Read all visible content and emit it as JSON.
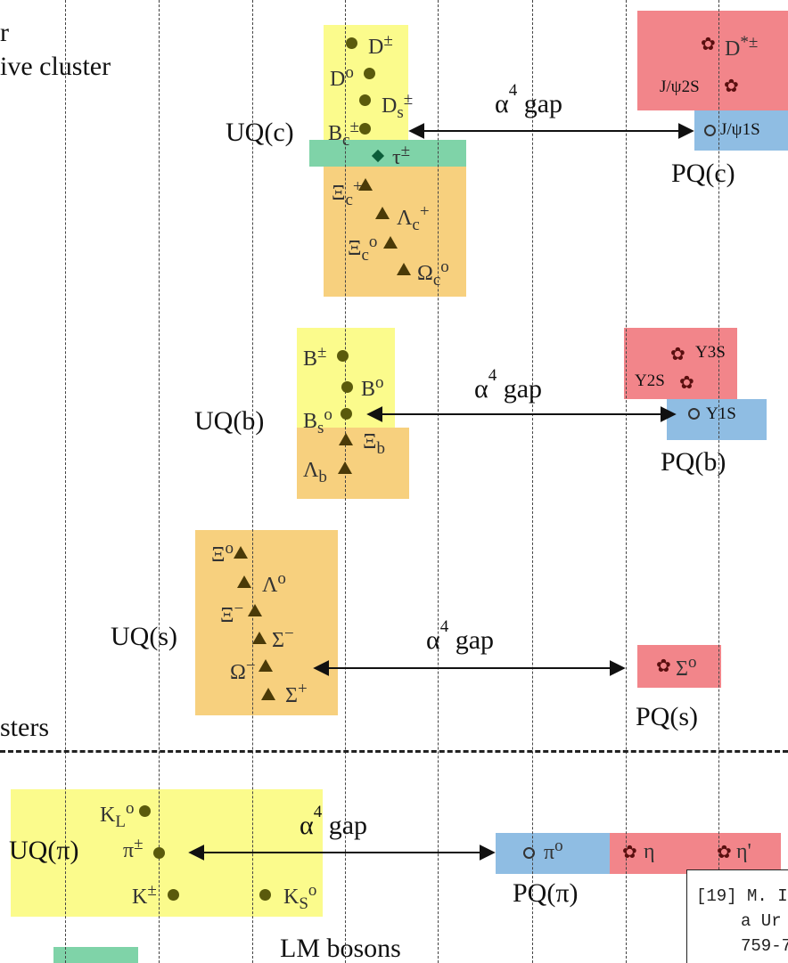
{
  "top_left_lines": [
    "r",
    "ive cluster"
  ],
  "left_clusters_label": "sters",
  "bottom_label": "LM bosons",
  "gap": {
    "alpha": "α",
    "exponent": "4",
    "word": "gap"
  },
  "uq": {
    "c": "UQ(c)",
    "b": "UQ(b)",
    "s": "UQ(s)",
    "pi": "UQ(π)"
  },
  "pq": {
    "c": "PQ(c)",
    "b": "PQ(b)",
    "s": "PQ(s)",
    "pi": "PQ(π)"
  },
  "particles": {
    "D_pm": {
      "base": "D",
      "sup": "±"
    },
    "D0": {
      "base": "D",
      "sup": "o"
    },
    "Ds": {
      "base": "D",
      "sub": "s",
      "sup": "±"
    },
    "Bc": {
      "base": "B",
      "sub": "c",
      "sup": "±"
    },
    "tau": {
      "base": "τ",
      "sup": "±"
    },
    "Xi_c_plus": {
      "base": "Ξ",
      "sub": "c",
      "sup": "+"
    },
    "Lambda_c": {
      "base": "Λ",
      "sub": "c",
      "sup": "+"
    },
    "Xi_c0": {
      "base": "Ξ",
      "sub": "c",
      "sup": "o"
    },
    "Omega_c": {
      "base": "Ω",
      "sub": "c",
      "sup": "o"
    },
    "Dstar": {
      "base": "D",
      "sup": "*±"
    },
    "Jpsi2S": {
      "text": "J/ψ2S"
    },
    "Jpsi1S": {
      "text": "J/ψ1S"
    },
    "B_pm": {
      "base": "B",
      "sup": "±"
    },
    "B0": {
      "base": "B",
      "sup": "o"
    },
    "Bs": {
      "base": "B",
      "sub": "s",
      "sup": "o"
    },
    "Xi_b": {
      "base": "Ξ",
      "sub": "b"
    },
    "Lambda_b": {
      "base": "Λ",
      "sub": "b"
    },
    "Y3S": {
      "text": "Y3S"
    },
    "Y2S": {
      "text": "Y2S"
    },
    "Y1S": {
      "text": "Y1S"
    },
    "Xi0": {
      "base": "Ξ",
      "sup": "o"
    },
    "Lambda0": {
      "base": "Λ",
      "sup": "o"
    },
    "Xi_minus": {
      "base": "Ξ",
      "sup": "−"
    },
    "Sigma_minus": {
      "base": "Σ",
      "sup": "−"
    },
    "Omega_minus": {
      "base": "Ω",
      "sup": "−"
    },
    "Sigma_plus": {
      "base": "Σ",
      "sup": "+"
    },
    "Sigma0": {
      "base": "Σ",
      "sup": "o"
    },
    "KL": {
      "base": "K",
      "sub": "L",
      "sup": "o"
    },
    "pi_pm": {
      "base": "π",
      "sup": "±"
    },
    "K_pm": {
      "base": "K",
      "sup": "±"
    },
    "KS": {
      "base": "K",
      "sub": "S",
      "sup": "o"
    },
    "pi0": {
      "base": "π",
      "sup": "o"
    },
    "eta": {
      "text": "η"
    },
    "eta_prime": {
      "text": "η'"
    }
  },
  "reference": {
    "lines": [
      "[19] M. I",
      "a Ur",
      "759-7"
    ]
  },
  "colors": {
    "unpaired": "#fbfb8c",
    "baryon": "#f7d07e",
    "excited": "#f2858a",
    "paired": "#8fbde3",
    "lepton": "#7fd3a8"
  }
}
